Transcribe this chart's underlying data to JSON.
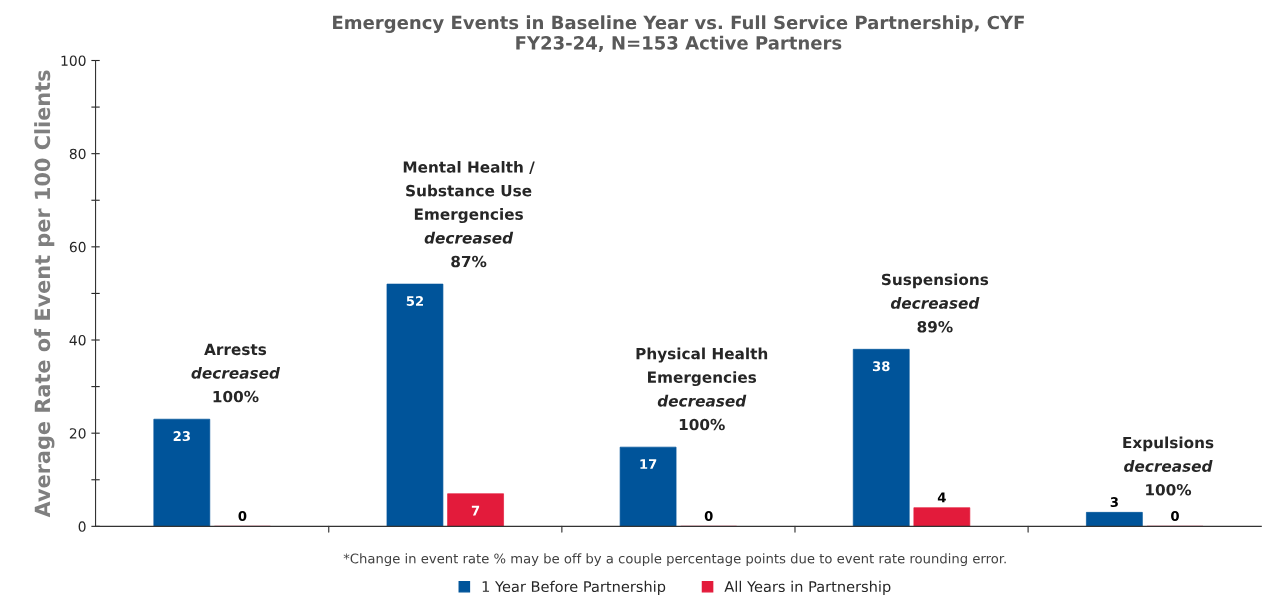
{
  "chart_data": {
    "type": "bar",
    "title": "Emergency Events in Baseline Year vs. Full Service Partnership, CYF\nFY23-24, N=153 Active Partners",
    "ylabel": "Average Rate of Event per 100 Clients",
    "categories": [
      null,
      null,
      null,
      null,
      null
    ],
    "series": [
      {
        "name": "1 Year Before Partnership",
        "color": "#00549a",
        "values": [
          23,
          52,
          17,
          38,
          3
        ]
      },
      {
        "name": "All Years in Partnership",
        "color": "#e31b3b",
        "values": [
          0,
          7,
          0,
          4,
          0
        ]
      }
    ],
    "ylim": [
      0,
      100
    ],
    "yticks": [
      0,
      {
        "value": 10,
        "label": null
      },
      20,
      {
        "value": 30,
        "label": null
      },
      40,
      {
        "value": 50,
        "label": null
      },
      60,
      {
        "value": 70,
        "label": null
      },
      80,
      {
        "value": 90,
        "label": null
      },
      100
    ],
    "data_labels": true,
    "grid": false,
    "legend": "bottom",
    "annotations": [
      "Arrests\ndecreased\n100%",
      "Mental Health /\nSubstance Use\nEmergencies\ndecreased\n87%",
      "Physical Health\nEmergencies\ndecreased\n100%",
      "Suspensions\ndecreased\n89%",
      "Expulsions\ndecreased\n100%",
      "*Change in event rate % may be off by a couple percentage points due to event rate rounding error."
    ]
  }
}
